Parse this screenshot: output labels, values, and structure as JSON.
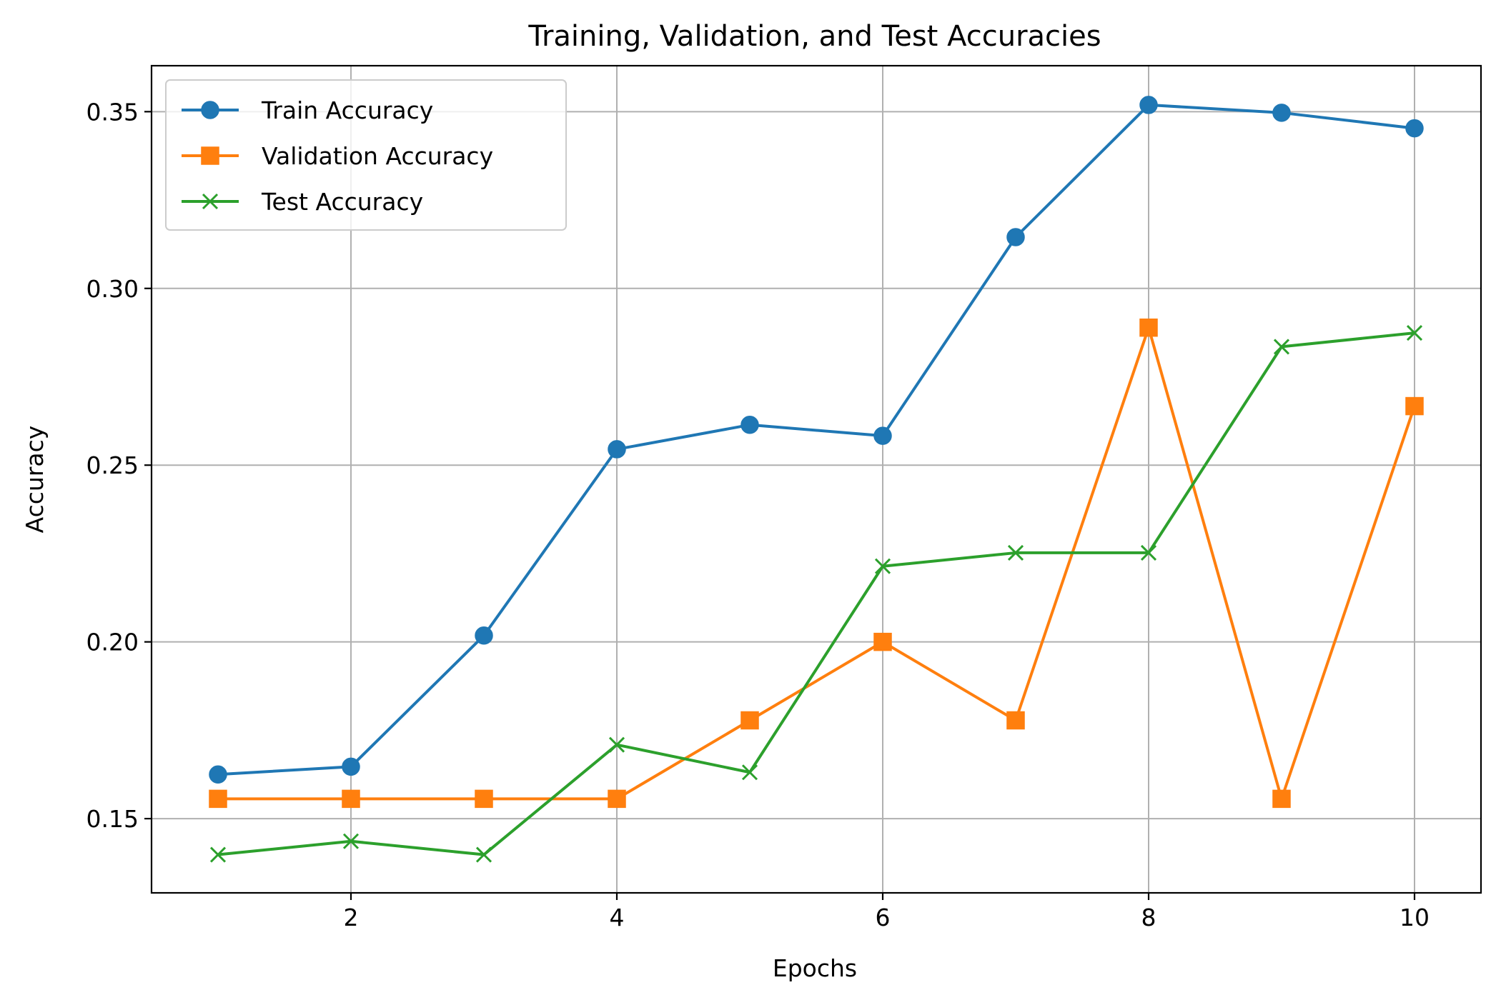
{
  "chart_data": {
    "type": "line",
    "title": "Training, Validation, and Test Accuracies",
    "xlabel": "Epochs",
    "ylabel": "Accuracy",
    "xlim": [
      0.5,
      10.5
    ],
    "ylim": [
      0.129,
      0.363
    ],
    "xticks": [
      2,
      4,
      6,
      8,
      10
    ],
    "xtick_labels": [
      "2",
      "4",
      "6",
      "8",
      "10"
    ],
    "yticks": [
      0.15,
      0.2,
      0.25,
      0.3,
      0.35
    ],
    "ytick_labels": [
      "0.15",
      "0.20",
      "0.25",
      "0.30",
      "0.35"
    ],
    "grid": true,
    "legend_position": "top-left",
    "x": [
      1,
      2,
      3,
      4,
      5,
      6,
      7,
      8,
      9,
      10
    ],
    "series": [
      {
        "name": "Train Accuracy",
        "color": "#1f77b4",
        "marker": "circle",
        "values": [
          0.1625,
          0.1647,
          0.2018,
          0.2545,
          0.2614,
          0.2583,
          0.3145,
          0.3519,
          0.3497,
          0.3453
        ]
      },
      {
        "name": "Validation Accuracy",
        "color": "#ff7f0e",
        "marker": "square",
        "values": [
          0.1556,
          0.1556,
          0.1556,
          0.1556,
          0.1778,
          0.2,
          0.1778,
          0.2889,
          0.1556,
          0.2667
        ]
      },
      {
        "name": "Test Accuracy",
        "color": "#2ca02c",
        "marker": "x",
        "values": [
          0.1398,
          0.1436,
          0.1398,
          0.1709,
          0.1631,
          0.2214,
          0.2252,
          0.2252,
          0.2835,
          0.2874
        ]
      }
    ]
  }
}
